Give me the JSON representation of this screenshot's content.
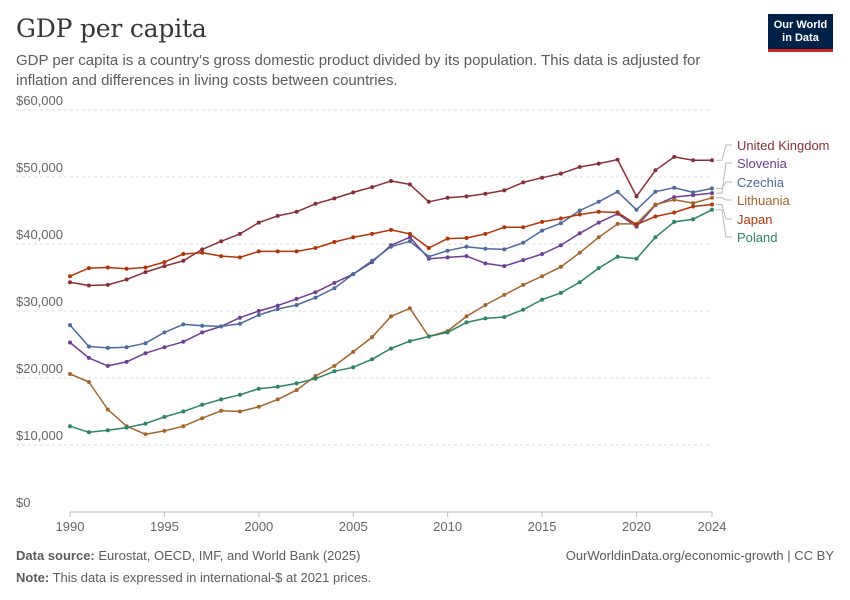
{
  "header": {
    "title": "GDP per capita",
    "subtitle": "GDP per capita is a country's gross domestic product divided by its population. This data is adjusted for inflation and differences in living costs between countries.",
    "logo_line1": "Our World",
    "logo_line2": "in Data"
  },
  "footer": {
    "source_label": "Data source:",
    "source_text": "Eurostat, OECD, IMF, and World Bank (2025)",
    "note_label": "Note:",
    "note_text": "This data is expressed in international-$ at 2021 prices.",
    "url_text": "OurWorldinData.org/economic-growth | CC BY"
  },
  "chart_data": {
    "type": "line",
    "ylim": [
      0,
      60000
    ],
    "xlim": [
      1990,
      2024
    ],
    "y_ticks": [
      0,
      10000,
      20000,
      30000,
      40000,
      50000,
      60000
    ],
    "y_tick_labels": [
      "$0",
      "$10,000",
      "$20,000",
      "$30,000",
      "$40,000",
      "$50,000",
      "$60,000"
    ],
    "x_ticks": [
      1990,
      1995,
      2000,
      2005,
      2010,
      2015,
      2020,
      2024
    ],
    "x_tick_labels": [
      "1990",
      "1995",
      "2000",
      "2005",
      "2010",
      "2015",
      "2020",
      "2024"
    ],
    "grid": "horizontal dashed",
    "legend": "right, labels at line ends",
    "x": [
      1990,
      1991,
      1992,
      1993,
      1994,
      1995,
      1996,
      1997,
      1998,
      1999,
      2000,
      2001,
      2002,
      2003,
      2004,
      2005,
      2006,
      2007,
      2008,
      2009,
      2010,
      2011,
      2012,
      2013,
      2014,
      2015,
      2016,
      2017,
      2018,
      2019,
      2020,
      2021,
      2022,
      2023,
      2024
    ],
    "series": [
      {
        "name": "United Kingdom",
        "color": "#883039",
        "values": [
          34300,
          33800,
          33900,
          34700,
          35800,
          36700,
          37500,
          39200,
          40400,
          41500,
          43200,
          44200,
          44800,
          46000,
          46800,
          47700,
          48500,
          49400,
          48900,
          46300,
          46900,
          47100,
          47500,
          48000,
          49200,
          49900,
          50500,
          51500,
          52000,
          52600,
          47100,
          51000,
          53000,
          52500,
          52500
        ]
      },
      {
        "name": "Slovenia",
        "color": "#6d3e91",
        "values": [
          25300,
          23000,
          21800,
          22400,
          23700,
          24600,
          25400,
          26800,
          27700,
          29000,
          30000,
          30800,
          31800,
          32800,
          34200,
          35500,
          37300,
          39800,
          41000,
          37800,
          38000,
          38200,
          37100,
          36700,
          37600,
          38500,
          39800,
          41600,
          43200,
          44500,
          42600,
          45800,
          47000,
          47300,
          47600
        ]
      },
      {
        "name": "Czechia",
        "color": "#4c6a9c",
        "values": [
          27900,
          24700,
          24500,
          24600,
          25200,
          26800,
          28000,
          27800,
          27700,
          28100,
          29400,
          30300,
          30900,
          32000,
          33400,
          35500,
          37500,
          39600,
          40400,
          38100,
          39000,
          39600,
          39300,
          39200,
          40200,
          42000,
          43100,
          45000,
          46300,
          47800,
          45100,
          47800,
          48400,
          47700,
          48300
        ]
      },
      {
        "name": "Lithuania",
        "color": "#a2662c",
        "values": [
          20600,
          19400,
          15300,
          12800,
          11600,
          12100,
          12800,
          14000,
          15100,
          15000,
          15700,
          16800,
          18200,
          20300,
          21800,
          23900,
          26100,
          29200,
          30400,
          26200,
          27000,
          29200,
          30900,
          32400,
          33900,
          35200,
          36600,
          38700,
          41000,
          43000,
          43000,
          45900,
          46600,
          46100,
          46900
        ]
      },
      {
        "name": "Japan",
        "color": "#b13507",
        "values": [
          35200,
          36400,
          36500,
          36300,
          36500,
          37300,
          38500,
          38700,
          38200,
          38000,
          38900,
          38900,
          38900,
          39400,
          40300,
          41000,
          41500,
          42100,
          41500,
          39400,
          40800,
          40900,
          41500,
          42500,
          42500,
          43300,
          43800,
          44400,
          44800,
          44700,
          42900,
          44100,
          44700,
          45600,
          45900
        ]
      },
      {
        "name": "Poland",
        "color": "#2c8465",
        "values": [
          12800,
          11900,
          12200,
          12600,
          13200,
          14200,
          15000,
          16000,
          16800,
          17500,
          18400,
          18700,
          19200,
          19900,
          21000,
          21600,
          22800,
          24400,
          25500,
          26200,
          26800,
          28300,
          28900,
          29100,
          30200,
          31700,
          32700,
          34300,
          36400,
          38100,
          37800,
          41000,
          43300,
          43700,
          45100
        ]
      }
    ]
  }
}
